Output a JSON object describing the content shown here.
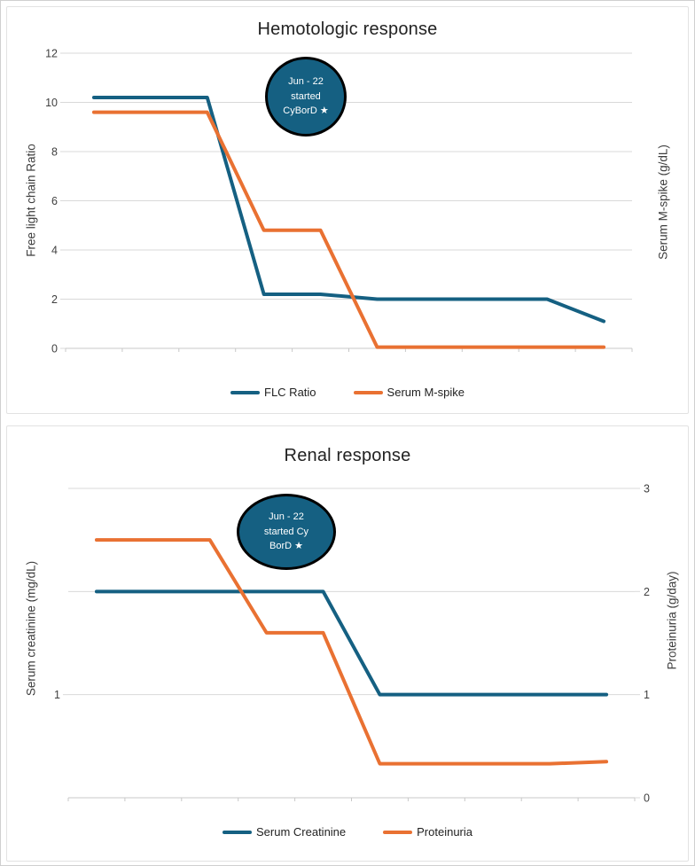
{
  "chart_data": [
    {
      "type": "line",
      "title": "Hemotologic response",
      "x_axis": {
        "tick_labels_visible": false,
        "num_points": 10
      },
      "left_axis": {
        "title": "Free light chain Ratio",
        "ticks": [
          12,
          10,
          8,
          6,
          4,
          2,
          0
        ],
        "range": [
          0,
          12
        ]
      },
      "right_axis": {
        "title": "Serum M-spike (g/dL)",
        "ticks": [],
        "range": [
          0,
          12
        ]
      },
      "grid": true,
      "legend_position": "bottom",
      "series": [
        {
          "name": "FLC Ratio",
          "color": "#156082",
          "values": [
            10.2,
            10.2,
            10.2,
            2.2,
            2.2,
            2.0,
            2.0,
            2.0,
            2.0,
            1.1
          ]
        },
        {
          "name": "Serum M-spike",
          "color": "#E97132",
          "values": [
            9.6,
            9.6,
            9.6,
            4.8,
            4.8,
            0.05,
            0.05,
            0.05,
            0.05,
            0.05
          ]
        }
      ],
      "annotation": {
        "text_lines": [
          "Jun - 22",
          "started",
          "CyBorD ★"
        ],
        "fill": "#156082",
        "border_color": "#000000",
        "text_color": "#ffffff"
      }
    },
    {
      "type": "line",
      "title": "Renal response",
      "x_axis": {
        "tick_labels_visible": false,
        "num_points": 10
      },
      "left_axis": {
        "title": "Serum creatinine (mg/dL)",
        "ticks": [
          1
        ],
        "range": [
          0,
          3
        ]
      },
      "right_axis": {
        "title": "Proteinuria (g/day)",
        "ticks": [
          3,
          2,
          1,
          0
        ],
        "range": [
          0,
          3
        ]
      },
      "grid": true,
      "legend_position": "bottom",
      "series": [
        {
          "name": "Serum Creatinine",
          "color": "#156082",
          "values": [
            2,
            2,
            2,
            2,
            2,
            1,
            1,
            1,
            1,
            1
          ]
        },
        {
          "name": "Proteinuria",
          "color": "#E97132",
          "values": [
            2.5,
            2.5,
            2.5,
            1.6,
            1.6,
            0.33,
            0.33,
            0.33,
            0.33,
            0.35
          ]
        }
      ],
      "annotation": {
        "text_lines": [
          "Jun - 22",
          "started Cy",
          "BorD ★"
        ],
        "fill": "#156082",
        "border_color": "#000000",
        "text_color": "#ffffff"
      }
    }
  ]
}
